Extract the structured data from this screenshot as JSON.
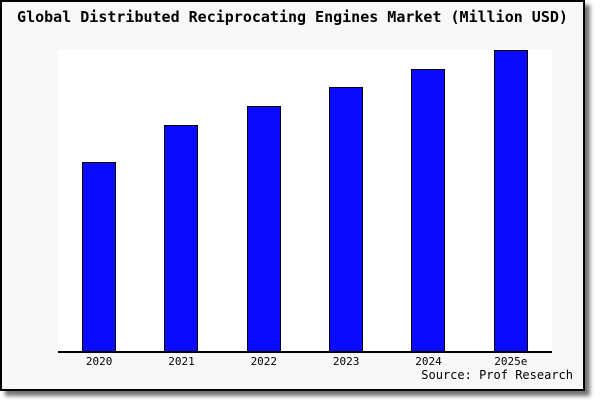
{
  "title": "Global Distributed Reciprocating Engines Market (Million USD)",
  "source_text": "Source: Prof Research",
  "colors": {
    "bar_fill": "#0a0aff",
    "bar_border": "#000000",
    "card_background": "#f8f8f8",
    "plot_background": "#ffffff",
    "card_border": "#000000",
    "shadow": "#8c8c8c"
  },
  "chart_data": {
    "type": "bar",
    "title": "Global Distributed Reciprocating Engines Market (Million USD)",
    "categories": [
      "2020",
      "2021",
      "2022",
      "2023",
      "2024",
      "2025e"
    ],
    "values": [
      62.8,
      75.1,
      81.4,
      87.7,
      93.7,
      100
    ],
    "values_note": "Y-axis has no tick labels; values are relative bar heights normalized to 2025e = 100",
    "xlabel": "",
    "ylabel": "",
    "ylim": [
      0,
      100
    ],
    "grid": false,
    "legend": false,
    "spines": "bottom-only"
  }
}
